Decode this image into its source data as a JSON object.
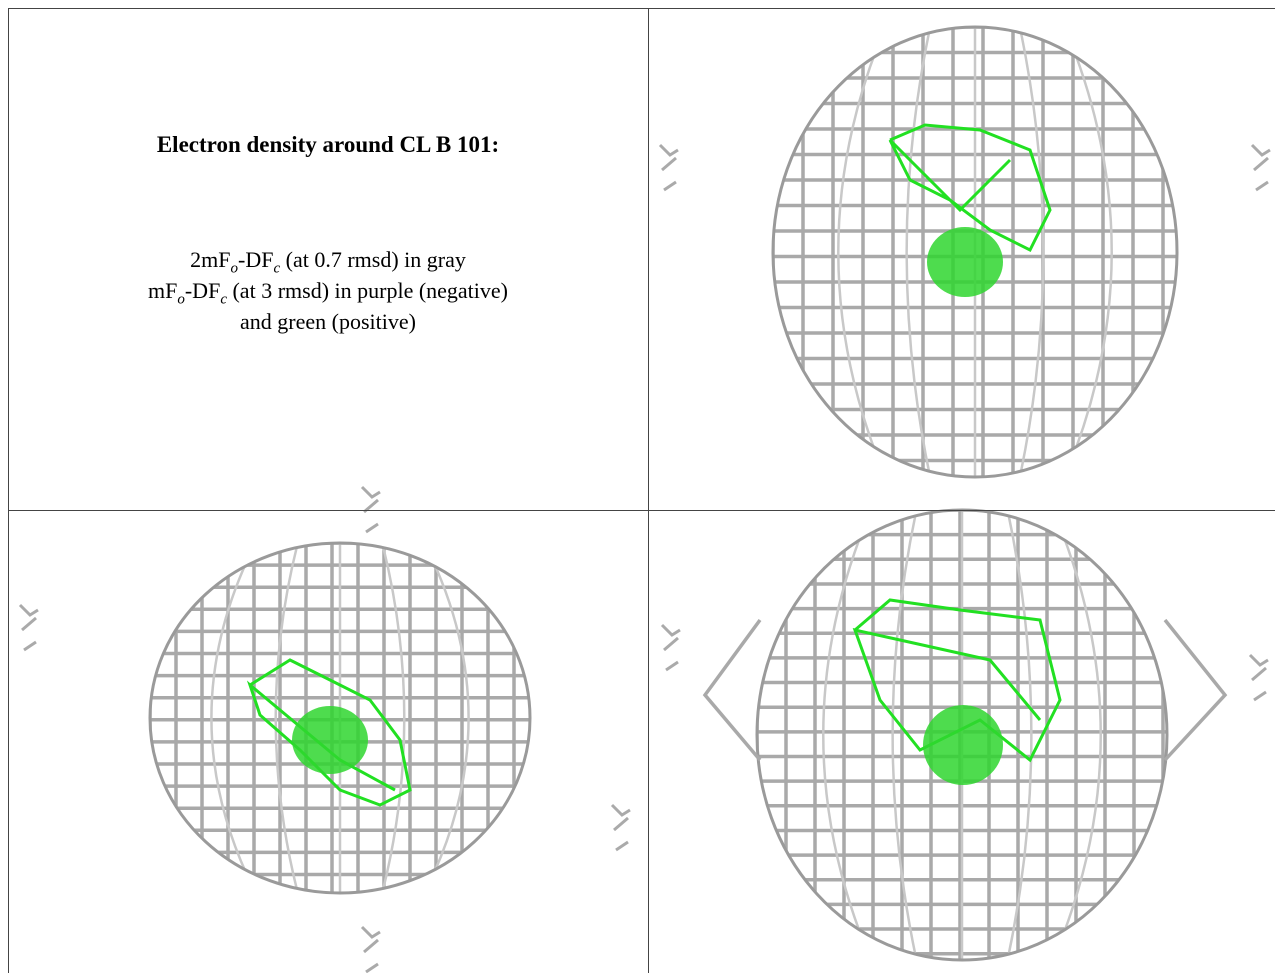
{
  "header": {
    "title": "Electron density around CL B 101:"
  },
  "legend": {
    "line1": [
      "2mF",
      "o",
      "-DF",
      "c",
      " (at 0.7 rmsd) in gray"
    ],
    "line2": [
      "mF",
      "o",
      "-DF",
      "c",
      " (at 3 rmsd) in purple (negative)"
    ],
    "line3": "and green (positive)"
  }
}
